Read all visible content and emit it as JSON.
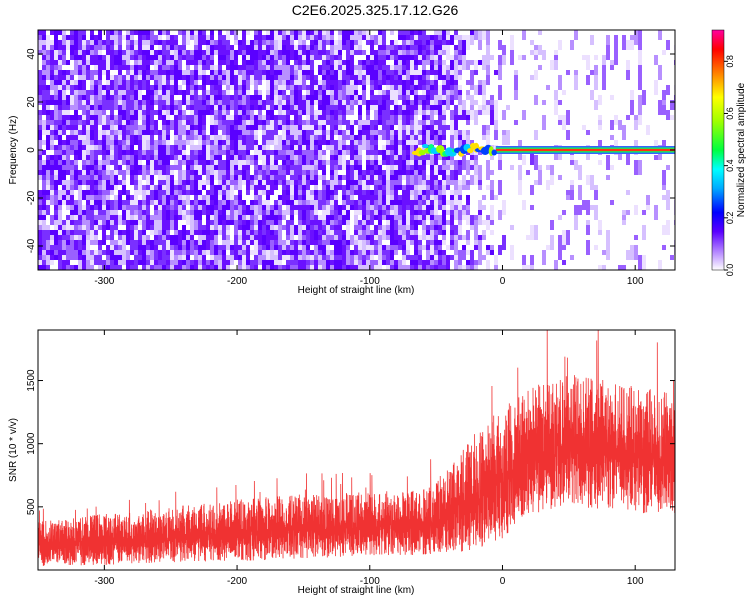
{
  "title": "C2E6.2025.325.17.12.G26",
  "chart_data": [
    {
      "type": "heatmap",
      "xlabel": "Height of straight line (km)",
      "ylabel": "Frequency (Hz)",
      "xlim": [
        -350,
        130
      ],
      "ylim": [
        -50,
        50
      ],
      "x_ticks": [
        -300,
        -200,
        -100,
        0,
        100
      ],
      "y_ticks": [
        -40,
        -20,
        0,
        20,
        40
      ],
      "colorbar": {
        "label": "Normalized spectral amplitude",
        "range": [
          0,
          0.92
        ],
        "ticks": [
          0.0,
          0.2,
          0.4,
          0.6,
          0.8
        ]
      },
      "features": {
        "noise_region_x": [
          -350,
          -45
        ],
        "fading_region_x": [
          -45,
          0
        ],
        "signal_line_x": [
          -65,
          130
        ],
        "signal_line_freq_hz": 0
      }
    },
    {
      "type": "line",
      "xlabel": "Height of straight line (km)",
      "ylabel": "SNR (10 * v/v)",
      "xlim": [
        -350,
        130
      ],
      "ylim": [
        0,
        1900
      ],
      "x_ticks": [
        -300,
        -200,
        -100,
        0,
        100
      ],
      "y_ticks": [
        500,
        1000,
        1500
      ],
      "series_color": "#f03232",
      "envelope": {
        "x": [
          -350,
          -300,
          -250,
          -200,
          -150,
          -100,
          -60,
          -40,
          -20,
          0,
          20,
          50,
          80,
          100,
          130
        ],
        "lower": [
          30,
          40,
          60,
          70,
          90,
          110,
          120,
          130,
          150,
          250,
          430,
          500,
          480,
          450,
          420
        ],
        "upper": [
          380,
          450,
          500,
          560,
          600,
          620,
          640,
          800,
          1100,
          1300,
          1450,
          1550,
          1500,
          1450,
          1400
        ]
      }
    }
  ]
}
